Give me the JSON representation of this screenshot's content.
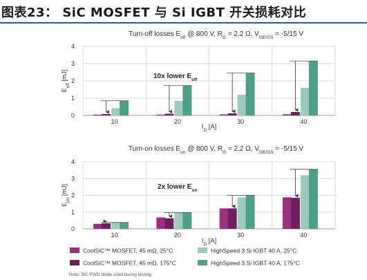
{
  "page": {
    "title": "图表23： SiC MOSFET 与 Si IGBT 开关损耗对比",
    "note": "Note: SiC FWD diode used during testing"
  },
  "colors": {
    "title_rule": "#1f5f95",
    "coolsic_25": "#9c2f7e",
    "coolsic_175": "#6d1f5e",
    "igbt_25": "#9ccbbd",
    "igbt_175": "#4e9f87",
    "arrow": "#444444"
  },
  "chart_data": [
    {
      "type": "bar",
      "id": "turn-off",
      "title_parts": [
        "Turn-off losses E",
        "off",
        " @ 800 V, R",
        "G",
        " = 2.2 Ω, V",
        "GE/GS",
        " = -5/15 V"
      ],
      "ylabel_parts": [
        "E",
        "off",
        " [mJ]"
      ],
      "xlabel_parts": [
        "I",
        "D",
        " [A]"
      ],
      "annotation_parts": [
        "10x lower E",
        "off"
      ],
      "ylim": [
        0,
        4
      ],
      "yticks": [
        "0",
        "1",
        "2",
        "3",
        "4"
      ],
      "categories": [
        "10",
        "20",
        "30",
        "40"
      ],
      "series": [
        {
          "name": "CoolSiC™ MOSFET, 45 mΩ, 25°C",
          "values": [
            0.05,
            0.05,
            0.06,
            0.07
          ]
        },
        {
          "name": "CoolSiC™ MOSFET, 45 mΩ, 175°C",
          "values": [
            0.08,
            0.1,
            0.12,
            0.2
          ]
        },
        {
          "name": "HighSpeed 3 Si IGBT 40 A, 25°C",
          "values": [
            0.42,
            0.85,
            1.2,
            1.6
          ]
        },
        {
          "name": "HighSpeed 3 Si IGBT 40 A, 175°C",
          "values": [
            0.85,
            1.73,
            2.45,
            3.15
          ]
        }
      ]
    },
    {
      "type": "bar",
      "id": "turn-on",
      "title_parts": [
        "Turn-on losses E",
        "on",
        " @ 800 V, R",
        "G",
        " = 2.2 Ω, V",
        "GE/GS",
        " = -5/15 V"
      ],
      "ylabel_parts": [
        "E",
        "on",
        " [mJ]"
      ],
      "xlabel_parts": [
        "I",
        "D",
        " [A]"
      ],
      "annotation_parts": [
        "2x lower E",
        "on"
      ],
      "ylim": [
        0,
        4
      ],
      "yticks": [
        "0",
        "1",
        "2",
        "3",
        "4"
      ],
      "categories": [
        "10",
        "20",
        "30",
        "40"
      ],
      "series": [
        {
          "name": "CoolSiC™ MOSFET, 45 mΩ, 25°C",
          "values": [
            0.3,
            0.68,
            1.22,
            1.88
          ]
        },
        {
          "name": "CoolSiC™ MOSFET, 45 mΩ, 175°C",
          "values": [
            0.33,
            0.63,
            1.22,
            1.85
          ]
        },
        {
          "name": "HighSpeed 3 Si IGBT 40 A, 25°C",
          "values": [
            0.37,
            0.95,
            1.88,
            3.2
          ]
        },
        {
          "name": "HighSpeed 3 Si IGBT 40 A, 175°C",
          "values": [
            0.38,
            0.97,
            2.0,
            3.55
          ]
        }
      ]
    }
  ]
}
